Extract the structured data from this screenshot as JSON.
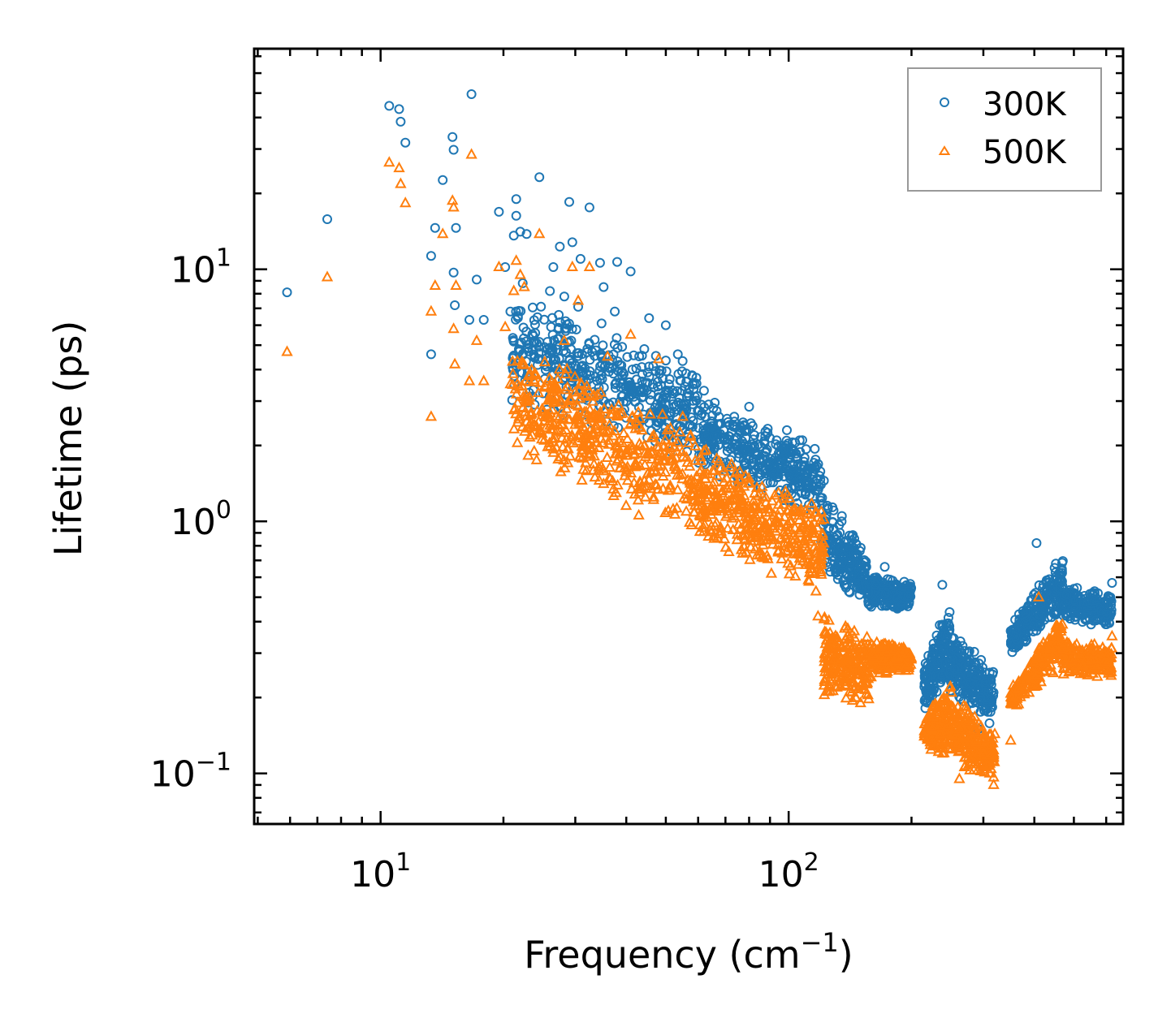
{
  "colors": {
    "series_300K": "#1f77b4",
    "series_500K": "#ff7f0e",
    "axis": "#000000",
    "legend_border": "#999999"
  },
  "chart_data": {
    "type": "scatter",
    "xscale": "log",
    "yscale": "log",
    "xlabel": "Frequency (cm",
    "xlabel_sup": "−1",
    "xlabel_end": ")",
    "ylabel": "Lifetime (ps)",
    "xlim": [
      4.9,
      660
    ],
    "ylim": [
      0.063,
      75
    ],
    "grid": false,
    "legend_position": "upper right",
    "x_ticks": [
      {
        "value": 10,
        "base": "10",
        "exp": "1"
      },
      {
        "value": 100,
        "base": "10",
        "exp": "2"
      }
    ],
    "y_ticks": [
      {
        "value": 0.1,
        "base": "10",
        "exp": "−1"
      },
      {
        "value": 1,
        "base": "10",
        "exp": "0"
      },
      {
        "value": 10,
        "base": "10",
        "exp": "1"
      }
    ],
    "series": [
      {
        "name": "300K",
        "marker": "circle",
        "color": "#1f77b4",
        "points": [
          [
            5.9,
            8.1
          ],
          [
            7.4,
            15.8
          ],
          [
            10.5,
            44.5
          ],
          [
            11.1,
            43.2
          ],
          [
            11.2,
            38.5
          ],
          [
            11.5,
            31.8
          ],
          [
            13.3,
            11.3
          ],
          [
            13.3,
            4.6
          ],
          [
            13.6,
            14.6
          ],
          [
            14.2,
            22.6
          ],
          [
            15.0,
            33.5
          ],
          [
            15.1,
            29.8
          ],
          [
            15.1,
            9.7
          ],
          [
            15.2,
            7.2
          ],
          [
            15.3,
            14.6
          ],
          [
            16.7,
            49.5
          ],
          [
            16.5,
            6.3
          ],
          [
            17.2,
            9.1
          ],
          [
            17.9,
            6.3
          ],
          [
            19.5,
            16.9
          ],
          [
            20.2,
            10.2
          ],
          [
            20.8,
            6.8
          ],
          [
            21.2,
            13.6
          ],
          [
            21.5,
            19.0
          ],
          [
            21.5,
            16.3
          ],
          [
            22.0,
            14.1
          ],
          [
            22.3,
            8.8
          ],
          [
            22.8,
            13.8
          ],
          [
            24.5,
            23.2
          ],
          [
            26.0,
            8.2
          ],
          [
            26.5,
            10.2
          ],
          [
            27.5,
            12.3
          ],
          [
            28.2,
            7.8
          ],
          [
            29.0,
            18.5
          ],
          [
            29.5,
            12.8
          ],
          [
            30.5,
            7.1
          ],
          [
            30.9,
            11.0
          ],
          [
            32.5,
            17.6
          ],
          [
            34.5,
            10.6
          ],
          [
            35.2,
            8.5
          ],
          [
            37.5,
            6.8
          ],
          [
            38.0,
            10.7
          ],
          [
            41.0,
            9.8
          ],
          [
            45.5,
            6.4
          ],
          [
            50.0,
            6.0
          ],
          [
            53.5,
            4.6
          ],
          [
            58.0,
            3.8
          ],
          [
            62.0,
            3.3
          ],
          [
            67.5,
            2.6
          ],
          [
            73.0,
            2.4
          ],
          [
            80.0,
            2.85
          ],
          [
            88.0,
            1.55
          ],
          [
            99.0,
            2.3
          ],
          [
            108.0,
            2.1
          ],
          [
            122.0,
            1.45
          ],
          [
            135.0,
            1.05
          ],
          [
            143.0,
            0.84
          ],
          [
            155.0,
            0.66
          ],
          [
            172.0,
            0.66
          ],
          [
            196.0,
            0.46
          ],
          [
            238.0,
            0.56
          ],
          [
            245.0,
            0.35
          ],
          [
            260.0,
            0.26
          ],
          [
            292.0,
            0.15
          ],
          [
            312.0,
            0.23
          ],
          [
            362.0,
            0.34
          ],
          [
            405.0,
            0.82
          ],
          [
            445.0,
            0.54
          ],
          [
            500.0,
            0.54
          ],
          [
            620.0,
            0.57
          ]
        ],
        "bands": [
          {
            "x": [
              21,
              60
            ],
            "y_at_x0": [
              2.9,
              9.0
            ],
            "y_at_x1": [
              1.7,
              4.2
            ],
            "n": 450
          },
          {
            "x": [
              60,
              120
            ],
            "y_at_x0": [
              1.6,
              3.2
            ],
            "y_at_x1": [
              1.0,
              2.0
            ],
            "n": 380
          },
          {
            "x": [
              120,
              155
            ],
            "y_at_x0": [
              0.55,
              1.4
            ],
            "y_at_x1": [
              0.48,
              0.75
            ],
            "n": 200
          },
          {
            "x": [
              155,
              200
            ],
            "y_at_x0": [
              0.45,
              0.62
            ],
            "y_at_x1": [
              0.44,
              0.58
            ],
            "n": 220
          },
          {
            "x": [
              215,
              248
            ],
            "y_at_x0": [
              0.17,
              0.3
            ],
            "y_at_x1": [
              0.23,
              0.48
            ],
            "n": 170
          },
          {
            "x": [
              248,
              318
            ],
            "y_at_x0": [
              0.2,
              0.38
            ],
            "y_at_x1": [
              0.15,
              0.27
            ],
            "n": 240
          },
          {
            "x": [
              350,
              470
            ],
            "y_at_x0": [
              0.29,
              0.39
            ],
            "y_at_x1": [
              0.42,
              0.78
            ],
            "n": 260
          },
          {
            "x": [
              470,
              620
            ],
            "y_at_x0": [
              0.4,
              0.56
            ],
            "y_at_x1": [
              0.38,
              0.52
            ],
            "n": 200
          }
        ]
      },
      {
        "name": "500K",
        "marker": "triangle",
        "color": "#ff7f0e",
        "points": [
          [
            5.9,
            4.7
          ],
          [
            7.4,
            9.3
          ],
          [
            10.5,
            26.5
          ],
          [
            11.1,
            25.2
          ],
          [
            11.2,
            21.8
          ],
          [
            11.5,
            18.3
          ],
          [
            13.3,
            6.8
          ],
          [
            13.3,
            2.6
          ],
          [
            13.6,
            8.6
          ],
          [
            14.2,
            13.8
          ],
          [
            15.0,
            18.7
          ],
          [
            15.1,
            17.6
          ],
          [
            15.1,
            5.8
          ],
          [
            15.2,
            4.2
          ],
          [
            15.3,
            8.6
          ],
          [
            16.7,
            28.5
          ],
          [
            16.5,
            3.6
          ],
          [
            17.2,
            5.2
          ],
          [
            17.9,
            3.6
          ],
          [
            19.5,
            10.2
          ],
          [
            20.2,
            5.9
          ],
          [
            20.8,
            3.5
          ],
          [
            21.2,
            8.2
          ],
          [
            21.5,
            10.8
          ],
          [
            22.0,
            9.5
          ],
          [
            22.5,
            8.5
          ],
          [
            23.0,
            1.82
          ],
          [
            24.5,
            13.8
          ],
          [
            28.2,
            5.2
          ],
          [
            29.5,
            10.2
          ],
          [
            30.5,
            7.5
          ],
          [
            32.5,
            10.2
          ],
          [
            36.0,
            4.5
          ],
          [
            41.0,
            5.5
          ],
          [
            48.0,
            4.4
          ],
          [
            55.0,
            2.6
          ],
          [
            62.0,
            1.9
          ],
          [
            75.0,
            1.4
          ],
          [
            82.0,
            1.2
          ],
          [
            86.0,
            0.72
          ],
          [
            99.0,
            1.1
          ],
          [
            108.0,
            0.95
          ],
          [
            118.0,
            0.42
          ],
          [
            130.0,
            0.32
          ],
          [
            142.0,
            0.24
          ],
          [
            150.0,
            0.19
          ],
          [
            155.0,
            0.23
          ],
          [
            175.0,
            0.32
          ],
          [
            196.0,
            0.3
          ],
          [
            215.0,
            0.14
          ],
          [
            240.0,
            0.2
          ],
          [
            262.0,
            0.095
          ],
          [
            300.0,
            0.12
          ],
          [
            318.0,
            0.09
          ],
          [
            350.0,
            0.135
          ],
          [
            410.0,
            0.5
          ],
          [
            445.0,
            0.25
          ],
          [
            500.0,
            0.31
          ],
          [
            620.0,
            0.35
          ]
        ],
        "bands": [
          {
            "x": [
              21,
              60
            ],
            "y_at_x0": [
              1.8,
              5.5
            ],
            "y_at_x1": [
              0.8,
              2.3
            ],
            "n": 470
          },
          {
            "x": [
              60,
              122
            ],
            "y_at_x0": [
              0.8,
              2.0
            ],
            "y_at_x1": [
              0.5,
              1.2
            ],
            "n": 400
          },
          {
            "x": [
              122,
              160
            ],
            "y_at_x0": [
              0.18,
              0.45
            ],
            "y_at_x1": [
              0.19,
              0.36
            ],
            "n": 220
          },
          {
            "x": [
              160,
              200
            ],
            "y_at_x0": [
              0.24,
              0.34
            ],
            "y_at_x1": [
              0.25,
              0.33
            ],
            "n": 200
          },
          {
            "x": [
              215,
              250
            ],
            "y_at_x0": [
              0.13,
              0.17
            ],
            "y_at_x1": [
              0.1,
              0.24
            ],
            "n": 180
          },
          {
            "x": [
              250,
              320
            ],
            "y_at_x0": [
              0.11,
              0.22
            ],
            "y_at_x1": [
              0.09,
              0.15
            ],
            "n": 230
          },
          {
            "x": [
              350,
              470
            ],
            "y_at_x0": [
              0.17,
              0.22
            ],
            "y_at_x1": [
              0.28,
              0.45
            ],
            "n": 230
          },
          {
            "x": [
              470,
              620
            ],
            "y_at_x0": [
              0.24,
              0.34
            ],
            "y_at_x1": [
              0.24,
              0.32
            ],
            "n": 200
          }
        ]
      }
    ]
  }
}
